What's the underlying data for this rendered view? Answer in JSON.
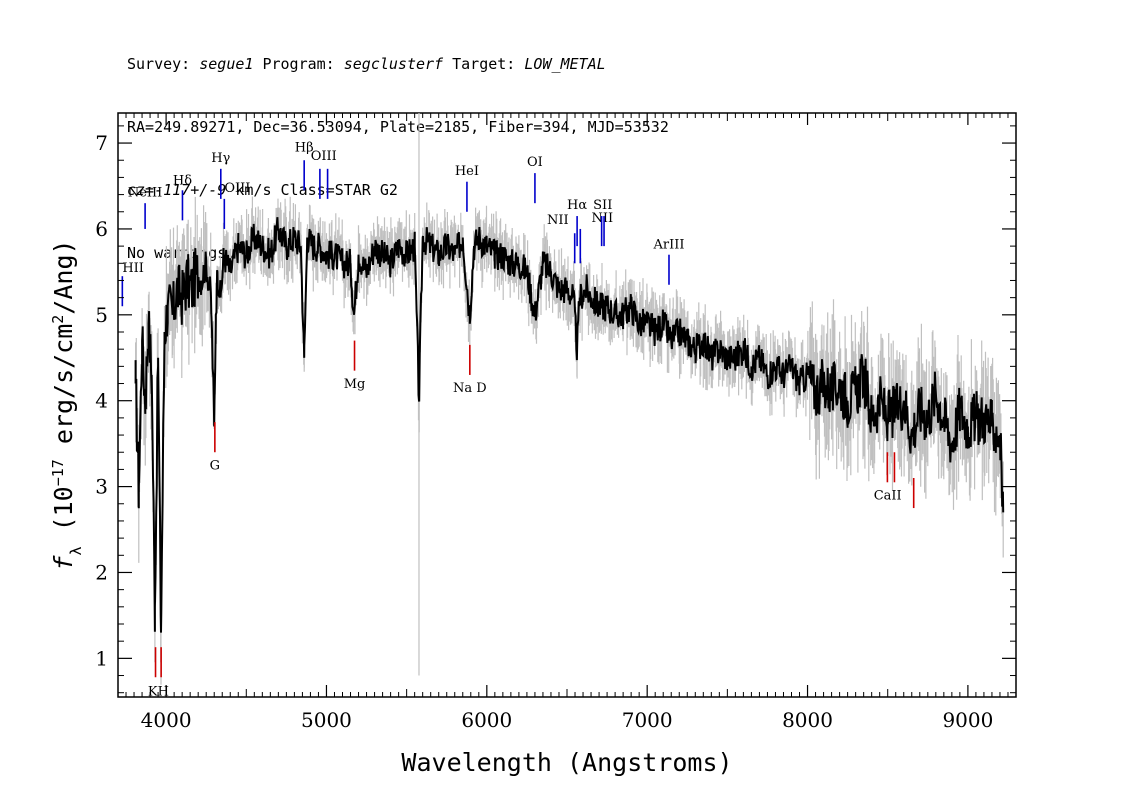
{
  "header": {
    "line1": [
      {
        "t": "Survey: ",
        "i": false
      },
      {
        "t": "segue1",
        "i": true
      },
      {
        "t": " Program: ",
        "i": false
      },
      {
        "t": "segclusterf",
        "i": true
      },
      {
        "t": " Target: ",
        "i": false
      },
      {
        "t": "LOW_METAL",
        "i": true
      }
    ],
    "line2": "RA=249.89271, Dec=36.53094, Plate=2185, Fiber=394, MJD=53532",
    "line3": [
      {
        "t": "cz=-117+/-9",
        "i": true
      },
      {
        "t": " km/s Class=STAR G2",
        "i": false
      }
    ],
    "line4": "No warnings."
  },
  "chart_data": {
    "type": "line",
    "xlabel": "Wavelength (Angstroms)",
    "ylabel": "f_λ (10^-17 erg/s/cm^2/Ang)",
    "xlim": [
      3700,
      9300
    ],
    "ylim": [
      0.55,
      7.35
    ],
    "x_ticks": [
      4000,
      5000,
      6000,
      7000,
      8000,
      9000
    ],
    "y_ticks": [
      1,
      2,
      3,
      4,
      5,
      6,
      7
    ],
    "colors": {
      "flux": "#000000",
      "error": "#c0c0c0",
      "emission": "#0000cc",
      "absorption": "#cc0000"
    },
    "series": [
      {
        "name": "flux",
        "x": [
          3810,
          3830,
          3850,
          3870,
          3890,
          3910,
          3930,
          3950,
          3968,
          3990,
          4010,
          4040,
          4070,
          4100,
          4130,
          4160,
          4190,
          4220,
          4250,
          4280,
          4300,
          4310,
          4320,
          4340,
          4360,
          4400,
          4450,
          4500,
          4550,
          4600,
          4650,
          4700,
          4750,
          4800,
          4840,
          4861,
          4880,
          4920,
          4960,
          5000,
          5050,
          5100,
          5150,
          5172,
          5200,
          5250,
          5300,
          5350,
          5400,
          5450,
          5500,
          5550,
          5577,
          5600,
          5650,
          5700,
          5750,
          5800,
          5850,
          5893,
          5920,
          5950,
          6000,
          6050,
          6100,
          6150,
          6200,
          6250,
          6300,
          6350,
          6400,
          6450,
          6500,
          6540,
          6563,
          6580,
          6620,
          6650,
          6700,
          6750,
          6800,
          6850,
          6900,
          6950,
          7000,
          7050,
          7100,
          7150,
          7200,
          7250,
          7300,
          7350,
          7400,
          7450,
          7500,
          7550,
          7600,
          7650,
          7700,
          7750,
          7800,
          7850,
          7900,
          7950,
          8000,
          8050,
          8100,
          8150,
          8200,
          8250,
          8300,
          8350,
          8400,
          8450,
          8500,
          8550,
          8600,
          8650,
          8700,
          8750,
          8800,
          8850,
          8900,
          8950,
          9000,
          9050,
          9100,
          9150,
          9200,
          9220
        ],
        "y": [
          4.2,
          3.0,
          4.7,
          4.0,
          4.9,
          4.3,
          1.6,
          4.5,
          1.3,
          4.8,
          5.1,
          5.0,
          5.3,
          5.2,
          5.4,
          5.3,
          5.5,
          5.4,
          5.6,
          5.2,
          3.7,
          5.0,
          5.5,
          5.2,
          5.7,
          5.5,
          5.8,
          5.7,
          5.9,
          5.8,
          5.7,
          6.0,
          5.8,
          5.9,
          5.8,
          4.5,
          5.9,
          5.8,
          5.8,
          5.7,
          5.7,
          5.6,
          5.6,
          5.0,
          5.7,
          5.5,
          5.8,
          5.7,
          5.6,
          5.8,
          5.7,
          5.8,
          4.0,
          5.9,
          5.8,
          5.7,
          5.8,
          5.7,
          5.9,
          5.0,
          5.8,
          5.9,
          5.8,
          5.7,
          5.7,
          5.6,
          5.6,
          5.5,
          5.0,
          5.6,
          5.5,
          5.3,
          5.3,
          5.2,
          4.6,
          5.2,
          5.3,
          5.2,
          5.1,
          5.1,
          5.0,
          5.0,
          5.1,
          4.9,
          4.9,
          4.8,
          4.9,
          4.7,
          4.8,
          4.7,
          4.6,
          4.7,
          4.5,
          4.6,
          4.5,
          4.5,
          4.6,
          4.4,
          4.5,
          4.3,
          4.4,
          4.3,
          4.4,
          4.2,
          4.3,
          4.1,
          4.2,
          4.1,
          4.2,
          4.0,
          4.1,
          4.3,
          3.8,
          4.0,
          3.8,
          3.9,
          4.0,
          3.6,
          3.9,
          3.8,
          4.1,
          3.8,
          3.5,
          3.9,
          3.7,
          3.8,
          3.8,
          3.7,
          3.6,
          2.7
        ]
      }
    ],
    "emission_lines": [
      {
        "name": "HII",
        "x": 3727
      },
      {
        "name": "NeIII",
        "x": 3869
      },
      {
        "name": "Hδ",
        "x": 4102
      },
      {
        "name": "Hγ",
        "x": 4341
      },
      {
        "name": "OIII",
        "x": 4363
      },
      {
        "name": "Hβ",
        "x": 4861
      },
      {
        "name": "OIII",
        "x": 4959
      },
      {
        "name": "OIII",
        "x": 5007
      },
      {
        "name": "HeI",
        "x": 5876
      },
      {
        "name": "OI",
        "x": 6300
      },
      {
        "name": "NII",
        "x": 6548
      },
      {
        "name": "Hα",
        "x": 6563
      },
      {
        "name": "NII",
        "x": 6583
      },
      {
        "name": "SII",
        "x": 6716
      },
      {
        "name": "SII",
        "x": 6731
      },
      {
        "name": "ArIII",
        "x": 7136
      }
    ],
    "absorption_lines": [
      {
        "name": "K",
        "x": 3934
      },
      {
        "name": "H",
        "x": 3969
      },
      {
        "name": "G",
        "x": 4304
      },
      {
        "name": "Mg",
        "x": 5175
      },
      {
        "name": "Na D",
        "x": 5894
      },
      {
        "name": "CaII",
        "x": 8498
      },
      {
        "name": "CaII",
        "x": 8542
      },
      {
        "name": "CaII",
        "x": 8662
      }
    ],
    "labels": {
      "HII": "HII",
      "NeIII": "NeIII",
      "Hdelta": "Hδ",
      "Hgamma": "Hγ",
      "OIII": "OIII",
      "Hbeta": "Hβ",
      "HeI": "HeI",
      "OI": "OI",
      "NII": "NII",
      "Halpha": "Hα",
      "SII": "SII",
      "ArIII": "ArIII",
      "KH": "KH",
      "G": "G",
      "Mg": "Mg",
      "NaD": "Na D",
      "CaII": "CaII"
    }
  }
}
